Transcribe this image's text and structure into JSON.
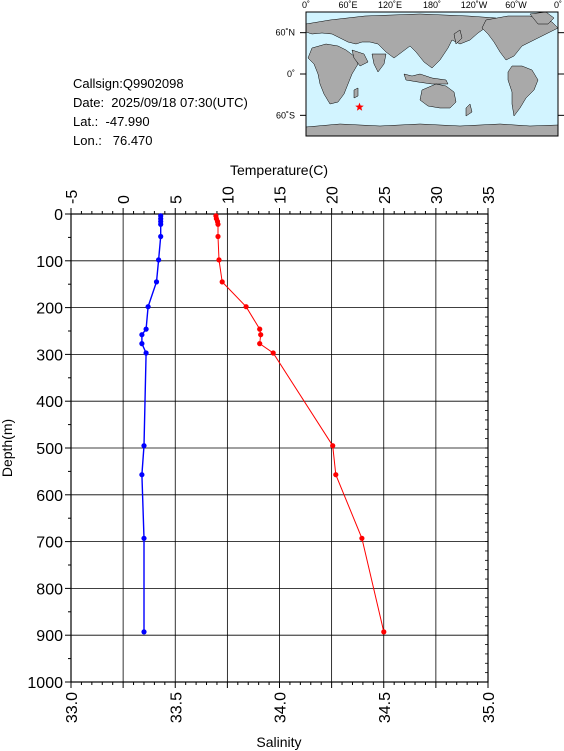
{
  "info": {
    "callsign": "Callsign:Q9902098",
    "date": "Date:  2025/09/18 07:30(UTC)",
    "lat": "Lat.:  -47.990",
    "lon": "Lon.:   76.470"
  },
  "map": {
    "lon_labels": [
      "0˚",
      "60˚E",
      "120˚E",
      "180˚",
      "120˚W",
      "60˚W",
      "0˚"
    ],
    "lat_labels": [
      "60˚N",
      "0˚",
      "60˚S"
    ],
    "ocean_color": "#d2f4ff",
    "land_color": "#a9a9a9",
    "marker_color": "#ff0000",
    "marker_lat": -47.99,
    "marker_lon": 76.47
  },
  "chart_data": {
    "type": "line",
    "title": "",
    "ylabel": "Depth(m)",
    "top_xlabel": "Temperature(C)",
    "bottom_xlabel": "Salinity",
    "ylim": [
      0,
      1000
    ],
    "y_ticks": [
      "0",
      "100",
      "200",
      "300",
      "400",
      "500",
      "600",
      "700",
      "800",
      "900",
      "1000"
    ],
    "temperature_range": [
      -5,
      35
    ],
    "temperature_ticks": [
      "-5",
      "0",
      "5",
      "10",
      "15",
      "20",
      "25",
      "30",
      "35"
    ],
    "salinity_range": [
      33.0,
      35.0
    ],
    "salinity_ticks": [
      "33.0",
      "33.5",
      "34.0",
      "34.5",
      "35.0"
    ],
    "grid": true,
    "series": [
      {
        "axis": "temperature",
        "color": "#ff0000",
        "depth": [
          4,
          10,
          16,
          22,
          48,
          98,
          145,
          198,
          246,
          258,
          277,
          297,
          495,
          557,
          693,
          893
        ],
        "values": [
          8.9,
          8.95,
          9.05,
          9.1,
          9.1,
          9.2,
          9.5,
          11.8,
          13.1,
          13.2,
          13.1,
          14.4,
          20.1,
          20.4,
          22.9,
          25.0
        ]
      },
      {
        "axis": "salinity",
        "color": "#0000ff",
        "depth": [
          4,
          10,
          16,
          22,
          48,
          98,
          145,
          198,
          246,
          258,
          277,
          297,
          495,
          557,
          693,
          893
        ],
        "values": [
          33.43,
          33.43,
          33.43,
          33.43,
          33.43,
          33.42,
          33.41,
          33.37,
          33.36,
          33.34,
          33.34,
          33.36,
          33.35,
          33.34,
          33.35,
          33.35
        ]
      }
    ]
  }
}
